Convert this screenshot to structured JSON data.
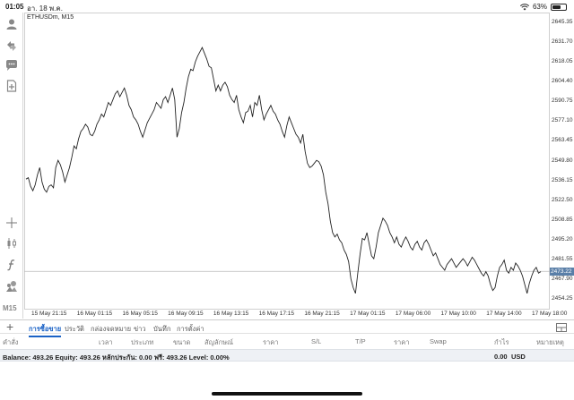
{
  "status_bar": {
    "time": "01:05",
    "date": "อา. 18 พ.ค.",
    "battery": "63%",
    "battery_level": 0.63
  },
  "chart": {
    "title": "ETHUSDm, M15",
    "current_price": "2473.22",
    "price_labels": [
      "2645.35",
      "2631.70",
      "2618.05",
      "2604.40",
      "2590.75",
      "2577.10",
      "2563.45",
      "2549.80",
      "2536.15",
      "2522.50",
      "2508.85",
      "2495.20",
      "2481.55",
      "2467.90",
      "2454.25"
    ],
    "time_labels": [
      "15 May 21:15",
      "16 May 01:15",
      "16 May 05:15",
      "16 May 09:15",
      "16 May 13:15",
      "16 May 17:15",
      "16 May 21:15",
      "17 May 01:15",
      "17 May 06:00",
      "17 May 10:00",
      "17 May 14:00",
      "17 May 18:00"
    ]
  },
  "chart_data": {
    "type": "line",
    "symbol": "ETHUSDm",
    "timeframe": "M15",
    "ylim": [
      2447.4,
      2652.2
    ],
    "current_price": 2473.22,
    "grid": false,
    "values": [
      2537,
      2538,
      2532,
      2529,
      2533,
      2540,
      2545,
      2535,
      2530,
      2528,
      2532,
      2533,
      2531,
      2545,
      2550,
      2547,
      2542,
      2535,
      2540,
      2545,
      2552,
      2560,
      2558,
      2565,
      2570,
      2572,
      2575,
      2573,
      2568,
      2567,
      2570,
      2575,
      2578,
      2582,
      2580,
      2585,
      2590,
      2588,
      2592,
      2596,
      2598,
      2594,
      2597,
      2600,
      2595,
      2588,
      2585,
      2580,
      2578,
      2575,
      2570,
      2566,
      2571,
      2576,
      2579,
      2582,
      2585,
      2590,
      2588,
      2586,
      2592,
      2594,
      2590,
      2595,
      2600,
      2592,
      2566,
      2572,
      2583,
      2590,
      2600,
      2608,
      2613,
      2612,
      2618,
      2622,
      2625,
      2628,
      2624,
      2620,
      2615,
      2614,
      2606,
      2598,
      2602,
      2598,
      2602,
      2604,
      2601,
      2595,
      2592,
      2590,
      2595,
      2585,
      2580,
      2576,
      2583,
      2584,
      2588,
      2580,
      2590,
      2588,
      2595,
      2585,
      2578,
      2582,
      2585,
      2588,
      2584,
      2582,
      2578,
      2575,
      2570,
      2566,
      2574,
      2580,
      2576,
      2572,
      2568,
      2566,
      2562,
      2568,
      2556,
      2548,
      2545,
      2546,
      2548,
      2550,
      2549,
      2546,
      2540,
      2528,
      2520,
      2508,
      2500,
      2497,
      2499,
      2495,
      2493,
      2488,
      2485,
      2480,
      2468,
      2462,
      2458,
      2472,
      2485,
      2496,
      2495,
      2500,
      2492,
      2484,
      2482,
      2490,
      2500,
      2505,
      2510,
      2508,
      2505,
      2500,
      2497,
      2493,
      2497,
      2492,
      2490,
      2494,
      2497,
      2494,
      2490,
      2488,
      2492,
      2494,
      2490,
      2488,
      2493,
      2495,
      2492,
      2488,
      2484,
      2486,
      2482,
      2478,
      2476,
      2474,
      2478,
      2480,
      2482,
      2479,
      2476,
      2478,
      2480,
      2482,
      2480,
      2477,
      2480,
      2483,
      2481,
      2478,
      2475,
      2472,
      2470,
      2473,
      2470,
      2464,
      2460,
      2462,
      2470,
      2476,
      2478,
      2481,
      2474,
      2472,
      2476,
      2474,
      2479,
      2477,
      2474,
      2470,
      2464,
      2458,
      2465,
      2470,
      2474,
      2476,
      2472,
      2473
    ]
  },
  "tabs": [
    {
      "label": "การซื้อขาย",
      "active": true
    },
    {
      "label": "ประวัติ",
      "active": false
    },
    {
      "label": "กล่องจดหมาย",
      "active": false
    },
    {
      "label": "ข่าว",
      "active": false
    },
    {
      "label": "บันทึก",
      "active": false
    },
    {
      "label": "การตั้งค่า",
      "active": false
    }
  ],
  "columns": [
    "คำสั่ง",
    "เวลา",
    "ประเภท",
    "ขนาด",
    "สัญลักษณ์",
    "ราคา",
    "S/L",
    "T/P",
    "ราคา",
    "Swap",
    "กำไร",
    "หมายเหตุ"
  ],
  "balance": {
    "text": "Balance: 493.26 Equity: 493.26 หลักประกัน: 0.00 ฟรี: 493.26 Level: 0.00%",
    "profit": "0.00",
    "currency": "USD"
  },
  "colors": {
    "accent": "#1a62c6",
    "price_tag": "#5a7fa8",
    "line": "#222222"
  },
  "icons": [
    "user-icon",
    "trade-arrows-icon",
    "chat-icon",
    "add-document-icon",
    "crosshair-icon",
    "candlestick-icon",
    "function-icon",
    "objects-icon",
    "layout-icon"
  ]
}
